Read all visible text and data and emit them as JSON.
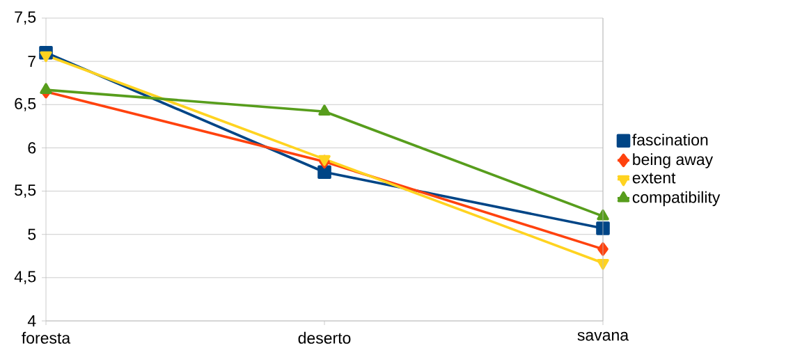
{
  "chart_data": {
    "type": "line",
    "categories": [
      "foresta",
      "deserto",
      "savana"
    ],
    "series": [
      {
        "name": "fascination",
        "color": "#004586",
        "marker": "square",
        "values": [
          7.1,
          5.72,
          5.07
        ]
      },
      {
        "name": "being away",
        "color": "#ff420e",
        "marker": "diamond",
        "values": [
          6.65,
          5.84,
          4.83
        ]
      },
      {
        "name": "extent",
        "color": "#ffd320",
        "marker": "triangle-down",
        "values": [
          7.07,
          5.87,
          4.67
        ]
      },
      {
        "name": "compatibility",
        "color": "#579d1c",
        "marker": "triangle",
        "values": [
          6.67,
          6.42,
          5.21
        ]
      }
    ],
    "ylim": [
      4,
      7.5
    ],
    "yticks": [
      {
        "value": 4,
        "label": "4"
      },
      {
        "value": 4.5,
        "label": "4,5"
      },
      {
        "value": 5,
        "label": "5"
      },
      {
        "value": 5.5,
        "label": "5,5"
      },
      {
        "value": 6,
        "label": "6"
      },
      {
        "value": 6.5,
        "label": "6,5"
      },
      {
        "value": 7,
        "label": "7"
      },
      {
        "value": 7.5,
        "label": "7,5"
      }
    ],
    "grid": "y",
    "legend": "right",
    "line_style": "solid"
  }
}
